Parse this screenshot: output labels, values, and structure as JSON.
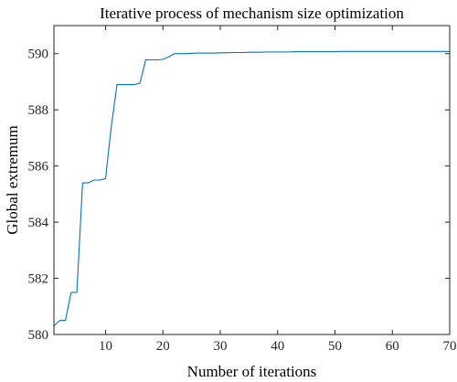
{
  "chart_data": {
    "type": "line",
    "title": "Iterative process of mechanism size optimization",
    "xlabel": "Number of iterations",
    "ylabel": "Global extremum",
    "xlim": [
      1,
      70
    ],
    "ylim": [
      580,
      591
    ],
    "xticks": [
      10,
      20,
      30,
      40,
      50,
      60,
      70
    ],
    "yticks": [
      580,
      582,
      584,
      586,
      588,
      590
    ],
    "grid": false,
    "box": true,
    "series": [
      {
        "color": "#0072BD",
        "x": [
          1,
          2,
          3,
          4,
          5,
          6,
          7,
          8,
          9,
          10,
          11,
          12,
          13,
          14,
          15,
          16,
          17,
          18,
          19,
          20,
          21,
          22,
          23,
          24,
          25,
          26,
          27,
          28,
          29,
          30,
          31,
          32,
          33,
          34,
          35,
          36,
          37,
          38,
          39,
          40,
          41,
          42,
          43,
          44,
          45,
          46,
          47,
          48,
          49,
          50,
          51,
          52,
          53,
          54,
          55,
          56,
          57,
          58,
          59,
          60,
          61,
          62,
          63,
          64,
          65,
          66,
          67,
          68,
          69,
          70
        ],
        "y": [
          580.3,
          580.5,
          580.5,
          581.5,
          581.5,
          585.4,
          585.4,
          585.5,
          585.5,
          585.55,
          587.4,
          588.9,
          588.9,
          588.9,
          588.9,
          588.95,
          589.78,
          589.78,
          589.78,
          589.8,
          589.88,
          590.0,
          590.0,
          590.0,
          590.01,
          590.02,
          590.02,
          590.02,
          590.02,
          590.03,
          590.03,
          590.04,
          590.04,
          590.04,
          590.05,
          590.05,
          590.05,
          590.06,
          590.06,
          590.06,
          590.06,
          590.06,
          590.07,
          590.07,
          590.07,
          590.07,
          590.07,
          590.07,
          590.07,
          590.07,
          590.08,
          590.08,
          590.08,
          590.08,
          590.08,
          590.08,
          590.08,
          590.08,
          590.08,
          590.08,
          590.08,
          590.08,
          590.08,
          590.08,
          590.08,
          590.08,
          590.08,
          590.08,
          590.08,
          590.08
        ]
      }
    ]
  }
}
